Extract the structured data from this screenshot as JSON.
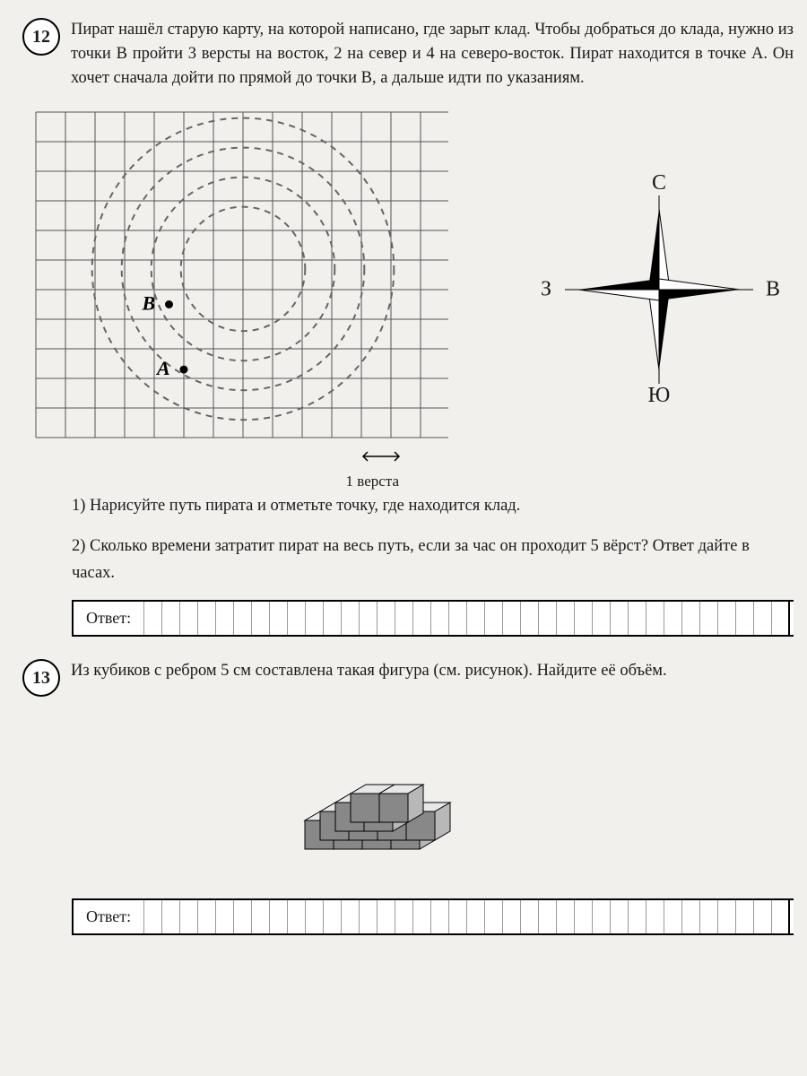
{
  "p12": {
    "number": "12",
    "text": "Пират нашёл старую карту, на которой написано, где зарыт клад. Чтобы добраться до клада, нужно из точки B пройти 3 версты на восток, 2 на север и 4 на северо-восток. Пират находится в точке A. Он хочет сначала дойти по прямой до точки B, а дальше идти по указаниям.",
    "q1": "1) Нарисуйте путь пирата и отметьте точку, где находится клад.",
    "q2": "2) Сколько времени затратит пират на весь путь, если за час он проходит 5 вёрст? Ответ дайте в часах.",
    "answer_label": "Ответ:",
    "versta_label": "1 верста",
    "point_a": "A",
    "point_b": "B",
    "compass": {
      "n": "С",
      "s": "Ю",
      "e": "В",
      "w": "З"
    },
    "grid": {
      "size": 14,
      "cell": 33,
      "circles_center": [
        7,
        5.3
      ],
      "circle_radii": [
        2.1,
        3.1,
        4.1,
        5.1
      ],
      "point_a_pos": [
        5,
        8.7
      ],
      "point_b_pos": [
        4.5,
        6.5
      ]
    }
  },
  "p13": {
    "number": "13",
    "text": "Из кубиков с ребром 5 см составлена такая фигура (см. рисунок). Найдите её объём.",
    "answer_label": "Ответ:"
  },
  "colors": {
    "line": "#000000",
    "grid_line": "#555555",
    "dash": "#666666",
    "cube_light": "#e8e8e8",
    "cube_mid": "#b8b8b8",
    "cube_dark": "#888888"
  }
}
